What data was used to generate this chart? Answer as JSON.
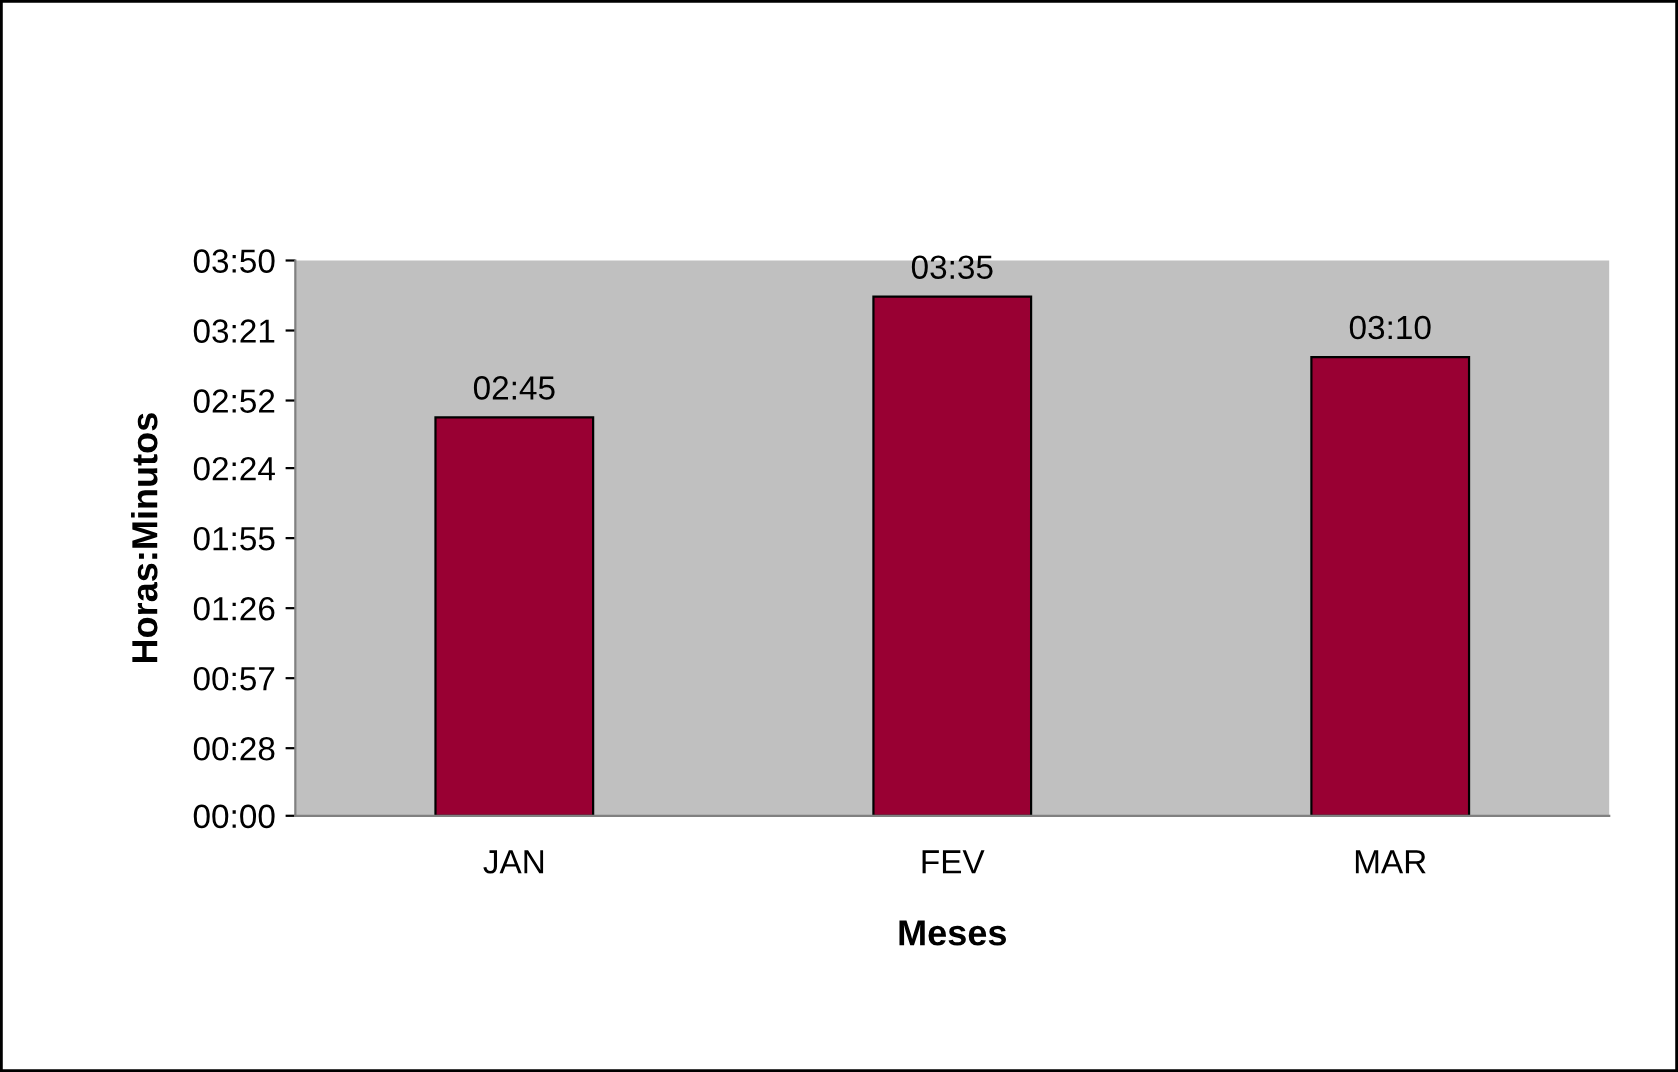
{
  "chart_data": {
    "type": "bar",
    "xlabel": "Meses",
    "ylabel": "Horas:Minutos",
    "categories": [
      "JAN",
      "FEV",
      "MAR"
    ],
    "values": [
      2.75,
      3.5833,
      3.1667
    ],
    "value_labels": [
      "02:45",
      "03:35",
      "03:10"
    ],
    "color": "#990033",
    "ylim": [
      0,
      3.8333
    ],
    "yticks": [
      {
        "value": 0,
        "label": "00:00"
      },
      {
        "value": 0.4667,
        "label": "00:28"
      },
      {
        "value": 0.95,
        "label": "00:57"
      },
      {
        "value": 1.4333,
        "label": "01:26"
      },
      {
        "value": 1.9167,
        "label": "01:55"
      },
      {
        "value": 2.4,
        "label": "02:24"
      },
      {
        "value": 2.8667,
        "label": "02:52"
      },
      {
        "value": 3.35,
        "label": "03:21"
      },
      {
        "value": 3.8333,
        "label": "03:50"
      }
    ],
    "grid": false,
    "legend": false
  }
}
